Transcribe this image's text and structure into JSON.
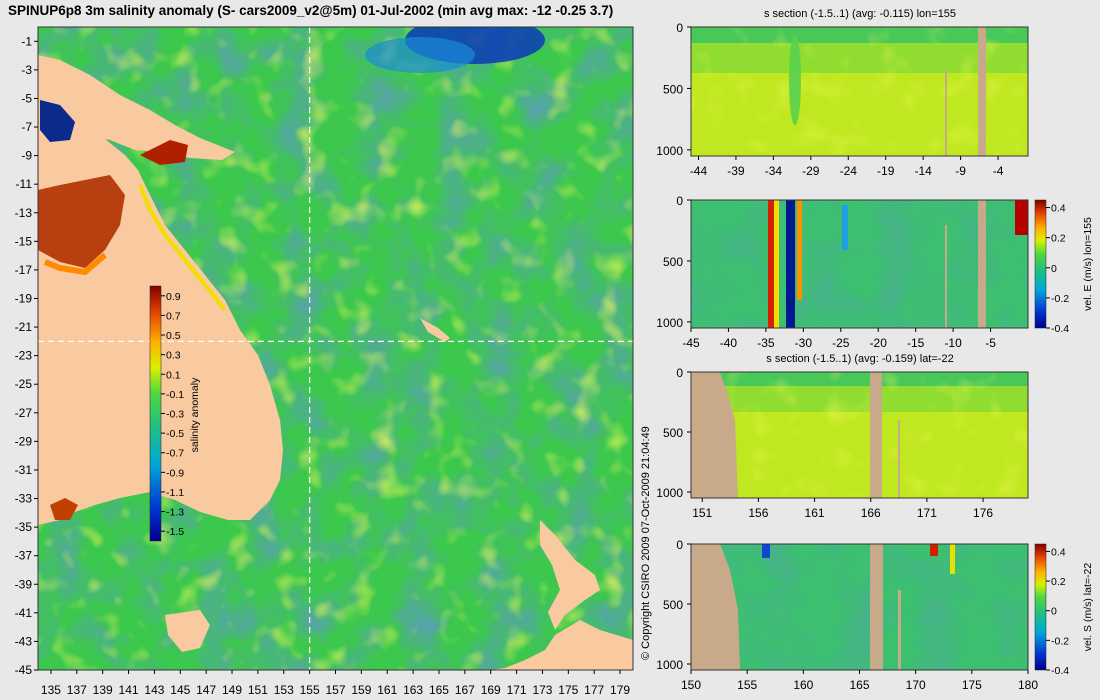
{
  "title": "SPINUP6p8 3m salinity anomaly (S- cars2009_v2@5m) 01-Jul-2002 (min avg max: -12 -0.25 3.7)",
  "copyright": "© Copyright CSIRO 2009   07-Oct-2009 21:04:49",
  "colors": {
    "land": "#f9c9a0",
    "section_land": "#c8aa8a",
    "background": "#e8e8e8"
  },
  "chart_data": [
    {
      "type": "heatmap",
      "name": "map",
      "x_ticks": [
        "135",
        "137",
        "139",
        "141",
        "143",
        "145",
        "147",
        "149",
        "151",
        "153",
        "155",
        "157",
        "159",
        "161",
        "163",
        "165",
        "167",
        "169",
        "171",
        "173",
        "175",
        "177",
        "179"
      ],
      "y_ticks": [
        "-1",
        "-3",
        "-5",
        "-7",
        "-9",
        "-11",
        "-13",
        "-15",
        "-17",
        "-19",
        "-21",
        "-23",
        "-25",
        "-27",
        "-29",
        "-31",
        "-33",
        "-35",
        "-37",
        "-39",
        "-41",
        "-43",
        "-45"
      ],
      "xlim": [
        134,
        180
      ],
      "ylim": [
        -45,
        0
      ],
      "crosshair": {
        "lon": 155,
        "lat": -22
      },
      "colorbar": {
        "label": "salinity anomaly",
        "ticks": [
          "0.9",
          "0.7",
          "0.5",
          "0.3",
          "0.1",
          "-0.1",
          "-0.3",
          "-0.5",
          "-0.7",
          "-0.9",
          "-1.1",
          "-1.3",
          "-1.5"
        ],
        "range": [
          -1.6,
          1.0
        ]
      }
    },
    {
      "type": "heatmap",
      "name": "s-section-lon",
      "title": "s section (-1.5..1) (avg: -0.115) lon=155",
      "x_ticks": [
        "-44",
        "-39",
        "-34",
        "-29",
        "-24",
        "-19",
        "-14",
        "-9",
        "-4"
      ],
      "y_ticks": [
        "0",
        "500",
        "1000"
      ],
      "xlim": [
        -45,
        0
      ],
      "ylim": [
        1050,
        0
      ]
    },
    {
      "type": "heatmap",
      "name": "vel-e-section",
      "title": "",
      "x_ticks": [
        "-45",
        "-40",
        "-35",
        "-30",
        "-25",
        "-20",
        "-15",
        "-10",
        "-5"
      ],
      "y_ticks": [
        "0",
        "500",
        "1000"
      ],
      "xlim": [
        -45,
        0
      ],
      "ylim": [
        1050,
        0
      ],
      "colorbar": {
        "label": "vel. E (m/s) lon=155",
        "ticks": [
          "0.4",
          "0.2",
          "0",
          "-0.2",
          "-0.4"
        ],
        "range": [
          -0.4,
          0.45
        ]
      }
    },
    {
      "type": "heatmap",
      "name": "s-section-lat",
      "title": "s section (-1.5..1) (avg: -0.159) lat=-22",
      "x_ticks": [
        "151",
        "156",
        "161",
        "166",
        "171",
        "176"
      ],
      "y_ticks": [
        "0",
        "500",
        "1000"
      ],
      "xlim": [
        150,
        180
      ],
      "ylim": [
        1050,
        0
      ]
    },
    {
      "type": "heatmap",
      "name": "vel-s-section",
      "title": "",
      "x_ticks": [
        "150",
        "155",
        "160",
        "165",
        "170",
        "175",
        "180"
      ],
      "y_ticks": [
        "0",
        "500",
        "1000"
      ],
      "xlim": [
        150,
        180
      ],
      "ylim": [
        1050,
        0
      ],
      "colorbar": {
        "label": "vel. S (m/s) lat=-22",
        "ticks": [
          "0.4",
          "0.2",
          "0",
          "-0.2",
          "-0.4"
        ],
        "range": [
          -0.4,
          0.45
        ]
      }
    }
  ]
}
